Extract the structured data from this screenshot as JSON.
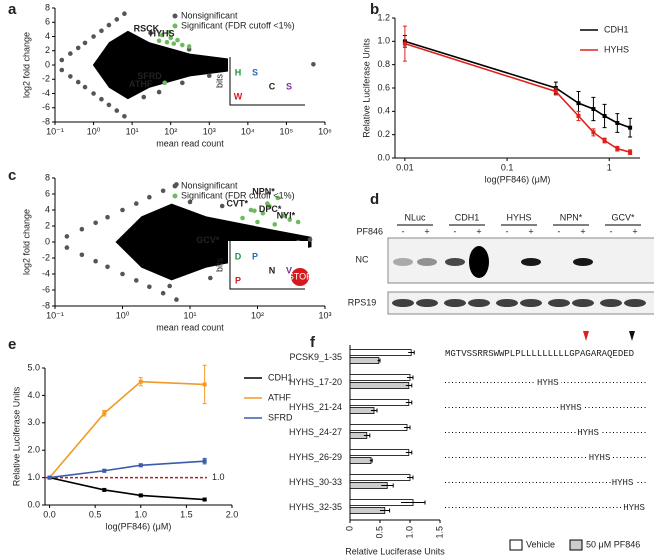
{
  "chart_data": [
    {
      "panel": "a",
      "type": "scatter",
      "xlabel": "mean read count",
      "ylabel": "log2 fold change",
      "xlog": true,
      "xlim": [
        0.1,
        1000000
      ],
      "xticks": [
        {
          "value": 0.1,
          "label": "10⁻¹"
        },
        {
          "value": 1,
          "label": "10⁰"
        },
        {
          "value": 10,
          "label": "10¹"
        },
        {
          "value": 100,
          "label": "10²"
        },
        {
          "value": 1000,
          "label": "10³"
        },
        {
          "value": 10000,
          "label": "10⁴"
        },
        {
          "value": 100000,
          "label": "10⁵"
        },
        {
          "value": 1000000,
          "label": "10⁶"
        }
      ],
      "ylim": [
        -8,
        8
      ],
      "yticks": [
        -8,
        -6,
        -4,
        -2,
        0,
        2,
        4,
        6,
        8
      ],
      "legend": "upper right",
      "series": [
        {
          "name": "Nonsignificant",
          "color": "#555555",
          "x": [
            0.15,
            0.25,
            0.4,
            0.6,
            1,
            1.6,
            2.5,
            4,
            6.3,
            0.15,
            0.25,
            0.4,
            0.6,
            1,
            1.6,
            2.5,
            4,
            6.3,
            20,
            50,
            200,
            1000,
            5000,
            20000,
            100000,
            500000,
            300,
            30
          ],
          "values": [
            0.7,
            1.6,
            2.4,
            3.1,
            4,
            4.8,
            5.6,
            6.4,
            7.2,
            -0.7,
            -1.6,
            -2.4,
            -3.1,
            -4,
            -4.8,
            -5.6,
            -6.4,
            -7.2,
            -4.5,
            -3.8,
            -2.5,
            -1.5,
            -0.8,
            0.6,
            0.3,
            0.1,
            2.2,
            4.5
          ]
        },
        {
          "name": "Significant (FDR cutoff <1%)",
          "color": "#6dbb5c",
          "x": [
            60,
            80,
            100,
            150,
            200,
            300,
            90,
            120,
            50,
            70
          ],
          "values": [
            4.2,
            3.2,
            3.8,
            3.5,
            2.8,
            2.6,
            4.6,
            3.0,
            3.4,
            -2.5
          ]
        }
      ],
      "annotations": [
        {
          "text": "RSCK",
          "x": 60,
          "y": 4.2
        },
        {
          "text": "HYHS",
          "x": 150,
          "y": 3.5
        },
        {
          "text": "SFRD",
          "x": 70,
          "y": -2.5
        },
        {
          "text": "ATHF",
          "x": 40,
          "y": -3.6
        }
      ],
      "logo": {
        "ylabel": "bits",
        "letters": [
          "H",
          "S",
          "C",
          "S",
          "W"
        ]
      }
    },
    {
      "panel": "b",
      "type": "line",
      "xlabel": "log(PF846) (μM)",
      "ylabel": "Relative Luciferase Units",
      "xlog": true,
      "xlim": [
        0.008,
        2
      ],
      "xticks": [
        0.01,
        0.1,
        1
      ],
      "ylim": [
        0,
        1.2
      ],
      "yticks": [
        {
          "value": 0,
          "label": "0.0"
        },
        {
          "value": 0.2,
          "label": "0.2"
        },
        {
          "value": 0.4,
          "label": "0.4"
        },
        {
          "value": 0.6,
          "label": "0.6"
        },
        {
          "value": 0.8,
          "label": "0.8"
        },
        {
          "value": 1,
          "label": "1.0"
        },
        {
          "value": 1.2,
          "label": "1.2"
        }
      ],
      "legend": "upper right",
      "x": [
        0.01,
        0.3,
        0.5,
        0.7,
        0.9,
        1.2,
        1.6
      ],
      "series": [
        {
          "name": "CDH1",
          "color": "#000000",
          "values": [
            1.0,
            0.6,
            0.47,
            0.42,
            0.36,
            0.3,
            0.26
          ],
          "errors": [
            0.05,
            0.05,
            0.1,
            0.1,
            0.1,
            0.08,
            0.08
          ]
        },
        {
          "name": "HYHS",
          "color": "#e0201b",
          "values": [
            0.98,
            0.57,
            0.36,
            0.22,
            0.15,
            0.08,
            0.05
          ],
          "errors": [
            0.15,
            0.03,
            0.04,
            0.03,
            0.02,
            0.02,
            0.02
          ]
        }
      ]
    },
    {
      "panel": "c",
      "type": "scatter",
      "xlabel": "mean read count",
      "ylabel": "log2 fold change",
      "xlog": true,
      "xlim": [
        0.1,
        1000
      ],
      "xticks": [
        {
          "value": 0.1,
          "label": "10⁻¹"
        },
        {
          "value": 1,
          "label": "10⁰"
        },
        {
          "value": 10,
          "label": "10¹"
        },
        {
          "value": 100,
          "label": "10²"
        },
        {
          "value": 1000,
          "label": "10³"
        }
      ],
      "ylim": [
        -8,
        8
      ],
      "yticks": [
        -8,
        -6,
        -4,
        -2,
        0,
        2,
        4,
        6,
        8
      ],
      "legend": "upper right",
      "series": [
        {
          "name": "Nonsignificant",
          "color": "#555555",
          "x": [
            0.15,
            0.25,
            0.4,
            0.6,
            1,
            1.6,
            2.5,
            4,
            6.3,
            0.15,
            0.25,
            0.4,
            0.6,
            1,
            1.6,
            2.5,
            4,
            6.3,
            20,
            50,
            200,
            400,
            30,
            80,
            10,
            600,
            150,
            5
          ],
          "values": [
            0.7,
            1.6,
            2.4,
            3.1,
            4,
            4.8,
            5.6,
            6.4,
            7.2,
            -0.7,
            -1.6,
            -2.4,
            -3.1,
            -4,
            -4.8,
            -5.6,
            -6.4,
            -7.2,
            -4.5,
            -3.5,
            -2,
            0,
            4.5,
            -5,
            5,
            0.3,
            -1.5,
            -5.5
          ]
        },
        {
          "name": "Significant (FDR cutoff <1%)",
          "color": "#6dbb5c",
          "x": [
            60,
            80,
            100,
            120,
            150,
            200,
            250,
            300,
            90,
            180,
            400,
            140
          ],
          "values": [
            3,
            4,
            2.5,
            3.6,
            4.5,
            5.5,
            3.3,
            2.8,
            3.9,
            2.2,
            2.5,
            4.8
          ]
        }
      ],
      "annotations": [
        {
          "text": "NPN*",
          "x": 200,
          "y": 5.5
        },
        {
          "text": "DPC*",
          "x": 250,
          "y": 3.3
        },
        {
          "text": "CVT*",
          "x": 80,
          "y": 4
        },
        {
          "text": "NYI*",
          "x": 400,
          "y": 2.5
        },
        {
          "text": "GCV*",
          "x": 30,
          "y": -0.6
        }
      ],
      "logo": {
        "ylabel": "bits",
        "letters": [
          "D",
          "P",
          "N",
          "V",
          "P",
          "STOP"
        ]
      }
    },
    {
      "panel": "e",
      "type": "line",
      "xlabel": "log(PF846) (μM)",
      "ylabel": "Relative Luciferase Units",
      "xlog": false,
      "xlim": [
        -0.05,
        2
      ],
      "xticks": [
        {
          "value": 0,
          "label": "0.0"
        },
        {
          "value": 0.5,
          "label": "0.5"
        },
        {
          "value": 1,
          "label": "1.0"
        },
        {
          "value": 1.5,
          "label": "1.5"
        },
        {
          "value": 2,
          "label": "2.0"
        }
      ],
      "ylim": [
        0,
        5
      ],
      "yticks": [
        {
          "value": 0,
          "label": "0.0"
        },
        {
          "value": 1,
          "label": "1.0"
        },
        {
          "value": 2,
          "label": "2.0"
        },
        {
          "value": 3,
          "label": "3.0"
        },
        {
          "value": 4,
          "label": "4.0"
        },
        {
          "value": 5,
          "label": "5.0"
        }
      ],
      "legend": "outside right",
      "x": [
        0,
        0.6,
        1.0,
        1.7
      ],
      "series": [
        {
          "name": "CDH1",
          "color": "#000000",
          "values": [
            1,
            0.55,
            0.35,
            0.2
          ],
          "errors": [
            0,
            0.03,
            0.03,
            0.03
          ]
        },
        {
          "name": "ATHF",
          "color": "#f39a25",
          "values": [
            1,
            3.35,
            4.5,
            4.4
          ],
          "errors": [
            0,
            0.1,
            0.15,
            0.7
          ]
        },
        {
          "name": "SFRD",
          "color": "#3b5bab",
          "values": [
            1,
            1.25,
            1.45,
            1.6
          ],
          "errors": [
            0,
            0.05,
            0.05,
            0.1
          ]
        }
      ],
      "reference": {
        "value": 1,
        "label": "1.0",
        "color": "#b22222"
      }
    },
    {
      "panel": "f",
      "type": "hbar",
      "xlabel": "Relative Luciferase Units",
      "xlim": [
        0,
        1.5
      ],
      "xticks": [
        0,
        0.5,
        {
          "value": 1,
          "label": "1.0"
        },
        1.5
      ],
      "legend": "lower right",
      "categories": [
        "PCSK9_1-35",
        "HYHS_17-20",
        "HYHS_21-24",
        "HYHS_24-27",
        "HYHS_26-29",
        "HYHS_30-33",
        "HYHS_32-35"
      ],
      "series": [
        {
          "name": "Vehicle",
          "color": "#ffffff",
          "values": [
            1.02,
            1.0,
            0.98,
            0.95,
            0.98,
            1.0,
            1.05
          ],
          "errors": [
            0.05,
            0.05,
            0.05,
            0.05,
            0.05,
            0.05,
            0.2
          ]
        },
        {
          "name": "50 μM PF846",
          "color": "#cccccc",
          "values": [
            0.48,
            0.98,
            0.4,
            0.28,
            0.35,
            0.62,
            0.58
          ],
          "errors": [
            0.02,
            0.05,
            0.05,
            0.05,
            0.02,
            0.1,
            0.08
          ]
        }
      ],
      "sequence": "MGTVSSRRSWWPLPLLLLLLLLLGPAGARAQEDED",
      "motif": "HYHS"
    }
  ],
  "blot": {
    "panel": "d",
    "treatment": "PF846",
    "lanes": [
      "NLuc",
      "CDH1",
      "HYHS",
      "NPN*",
      "GCV*"
    ],
    "minus": "-",
    "plus": "+",
    "rows": [
      "NC",
      "RPS19"
    ]
  }
}
